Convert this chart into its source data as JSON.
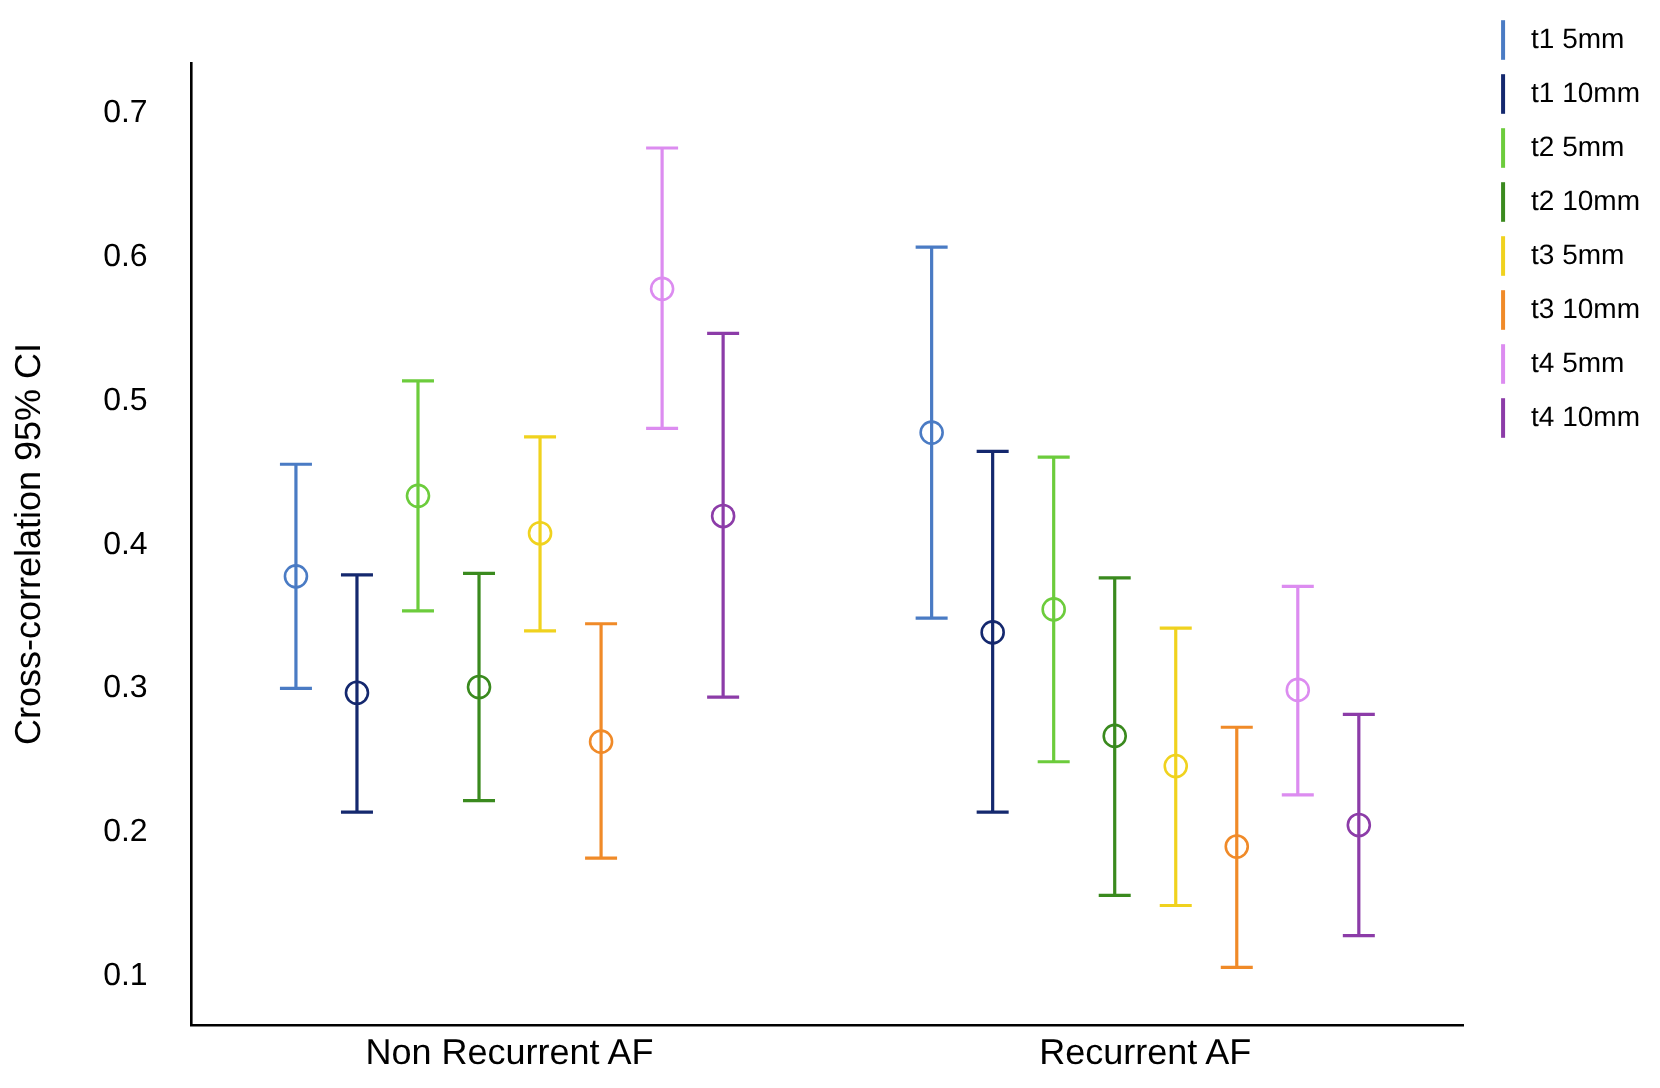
{
  "chart_data": {
    "type": "scatter",
    "ylabel": "Cross-correlation 95% CI",
    "categories": [
      "Non Recurrent AF",
      "Recurrent AF"
    ],
    "ylim": [
      0.066,
      0.735
    ],
    "yticks": [
      0.1,
      0.2,
      0.3,
      0.4,
      0.5,
      0.6,
      0.7
    ],
    "grid": false,
    "legend": "top right",
    "marker": "circle",
    "series": [
      {
        "name": "t1 5mm",
        "color": "#4a7bc4",
        "values": [
          0.378,
          0.478
        ],
        "errors": [
          [
            0.3,
            0.456
          ],
          [
            0.349,
            0.607
          ]
        ]
      },
      {
        "name": "t1 10mm",
        "color": "#14286e",
        "values": [
          0.297,
          0.339
        ],
        "errors": [
          [
            0.214,
            0.379
          ],
          [
            0.214,
            0.465
          ]
        ]
      },
      {
        "name": "t2 5mm",
        "color": "#6ccc3c",
        "values": [
          0.434,
          0.355
        ],
        "errors": [
          [
            0.354,
            0.514
          ],
          [
            0.249,
            0.461
          ]
        ]
      },
      {
        "name": "t2 10mm",
        "color": "#3a8a1e",
        "values": [
          0.301,
          0.267
        ],
        "errors": [
          [
            0.222,
            0.38
          ],
          [
            0.156,
            0.377
          ]
        ]
      },
      {
        "name": "t3 5mm",
        "color": "#f0d21e",
        "values": [
          0.408,
          0.246
        ],
        "errors": [
          [
            0.34,
            0.475
          ],
          [
            0.149,
            0.342
          ]
        ]
      },
      {
        "name": "t3 10mm",
        "color": "#f08a28",
        "values": [
          0.263,
          0.19
        ],
        "errors": [
          [
            0.182,
            0.345
          ],
          [
            0.106,
            0.273
          ]
        ]
      },
      {
        "name": "t4 5mm",
        "color": "#dc8cf0",
        "values": [
          0.578,
          0.299
        ],
        "errors": [
          [
            0.481,
            0.676
          ],
          [
            0.226,
            0.371
          ]
        ]
      },
      {
        "name": "t4 10mm",
        "color": "#8c3ca8",
        "values": [
          0.42,
          0.205
        ],
        "errors": [
          [
            0.294,
            0.547
          ],
          [
            0.128,
            0.282
          ]
        ]
      }
    ]
  }
}
